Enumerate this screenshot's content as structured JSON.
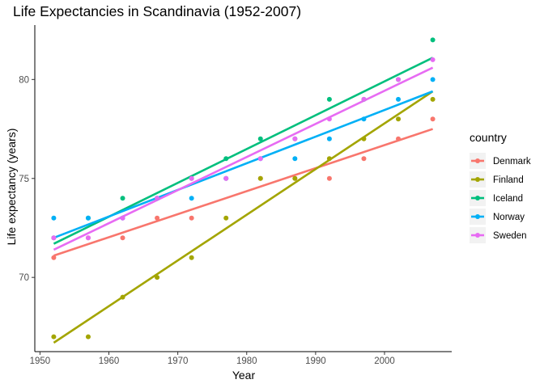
{
  "chart_data": {
    "type": "scatter",
    "title": "Life Expectancies in Scandinavia (1952-2007)",
    "xlabel": "Year",
    "ylabel": "Life expectancy (years)",
    "xlim": [
      1949.25,
      2009.75
    ],
    "ylim": [
      66.25,
      82.75
    ],
    "x_ticks": [
      1950,
      1960,
      1970,
      1980,
      1990,
      2000
    ],
    "y_ticks": [
      70,
      75,
      80
    ],
    "grid": false,
    "legend": {
      "title": "country",
      "placement": "right"
    },
    "x": [
      1952,
      1957,
      1962,
      1967,
      1972,
      1977,
      1982,
      1987,
      1992,
      1997,
      2002,
      2007
    ],
    "series": [
      {
        "name": "Denmark",
        "color": "#F8766D",
        "values": [
          71,
          72,
          72,
          73,
          73,
          75,
          75,
          75,
          75,
          76,
          77,
          78
        ],
        "fit": [
          71.1,
          77.5
        ]
      },
      {
        "name": "Finland",
        "color": "#A3A500",
        "values": [
          67,
          67,
          69,
          70,
          71,
          73,
          75,
          75,
          76,
          77,
          78,
          79
        ],
        "fit": [
          66.7,
          79.4
        ]
      },
      {
        "name": "Iceland",
        "color": "#00BF7D",
        "values": [
          72,
          73,
          74,
          74,
          75,
          76,
          77,
          77,
          79,
          79,
          80,
          82
        ],
        "fit": [
          71.7,
          81.1
        ]
      },
      {
        "name": "Norway",
        "color": "#00B0F6",
        "values": [
          73,
          73,
          73,
          74,
          74,
          75,
          76,
          76,
          77,
          78,
          79,
          80
        ],
        "fit": [
          72.0,
          79.4
        ]
      },
      {
        "name": "Sweden",
        "color": "#E76BF3",
        "values": [
          72,
          72,
          73,
          74,
          75,
          75,
          76,
          77,
          78,
          79,
          80,
          81
        ],
        "fit": [
          71.4,
          80.6
        ]
      }
    ]
  }
}
